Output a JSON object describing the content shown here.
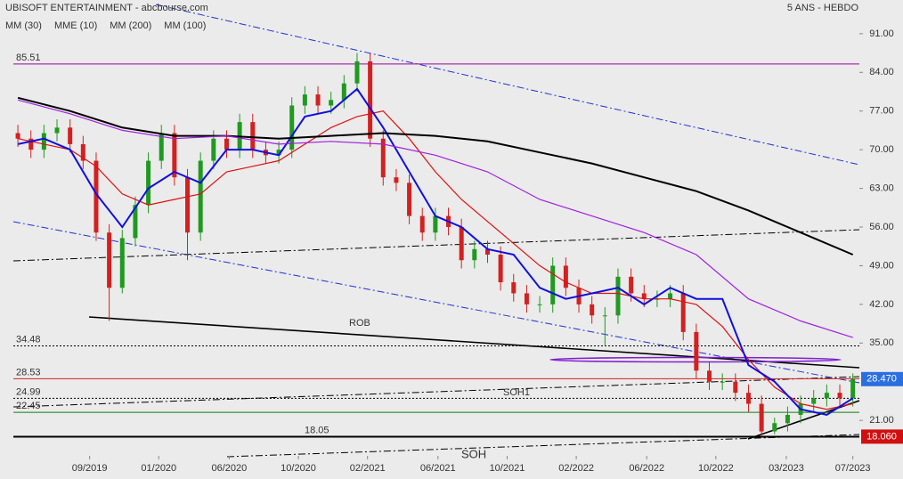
{
  "chart_data": {
    "type": "candlestick",
    "title": "UBISOFT ENTERTAINMENT - abcbourse.com",
    "subtitle": "5 ANS - HEBDO",
    "annotations": [
      "ROB",
      "SOH1",
      "SOH"
    ],
    "x": [
      0,
      1,
      2,
      3,
      4,
      5,
      6,
      7,
      8,
      9,
      10,
      11,
      12,
      13,
      14,
      15,
      16,
      17,
      18,
      19,
      20,
      21,
      22,
      23,
      24,
      25,
      26,
      27,
      28,
      29,
      30,
      31,
      32,
      33,
      34,
      35,
      36,
      37,
      38,
      39,
      40,
      41,
      42,
      43,
      44,
      45,
      46,
      47,
      48,
      49,
      50,
      51,
      52,
      53,
      54,
      55,
      56,
      57,
      58,
      59,
      60,
      61,
      62,
      63,
      64
    ],
    "open": [
      73,
      72,
      70,
      73,
      74,
      71,
      68,
      55,
      45,
      54,
      60,
      68,
      73,
      65,
      55,
      68,
      72,
      70,
      75,
      70,
      69,
      70,
      78,
      80,
      78,
      79,
      82,
      86,
      72,
      65,
      64,
      58,
      55,
      58,
      56,
      50,
      52,
      51,
      46,
      44,
      42,
      42,
      49,
      45,
      42,
      40,
      40,
      47,
      44,
      43,
      43,
      44,
      37,
      30,
      28,
      28,
      26,
      24,
      19,
      20.5,
      22,
      24,
      25,
      26,
      25
    ],
    "high": [
      74.5,
      73.5,
      74.5,
      75.5,
      75.5,
      72.5,
      69.5,
      56.5,
      55.5,
      61.5,
      69.5,
      74.5,
      74.5,
      66.5,
      69.5,
      73.5,
      73.5,
      76.5,
      76.5,
      71.5,
      71.5,
      79.5,
      81.5,
      81.5,
      80.5,
      83.5,
      87.5,
      87.5,
      73.5,
      66.5,
      65.5,
      59.5,
      59.5,
      59.5,
      57.5,
      53.5,
      53.5,
      52.5,
      47.5,
      45.5,
      43.5,
      50.5,
      50.5,
      46.5,
      43.5,
      41.5,
      48.5,
      48.5,
      45.5,
      44.5,
      45.5,
      45.5,
      38.5,
      31.5,
      29.5,
      29.5,
      27.5,
      25.5,
      21.5,
      23.5,
      25.5,
      26.5,
      27.5,
      27.5,
      29.5
    ],
    "low": [
      70.5,
      68.5,
      68.5,
      71.5,
      69.5,
      66.5,
      53.5,
      39,
      44,
      52.5,
      58.5,
      66.5,
      63.5,
      50,
      53.5,
      66.5,
      68.5,
      68.5,
      68.5,
      67.5,
      67.5,
      68.5,
      76.5,
      76.5,
      76.5,
      77.5,
      80.5,
      70.5,
      63.5,
      62.5,
      56.5,
      53.5,
      53.5,
      54.5,
      48.5,
      48.5,
      49.5,
      44.5,
      42.5,
      40.5,
      40.5,
      40.5,
      43.5,
      40.5,
      38.5,
      34.5,
      38.5,
      42.5,
      41.5,
      41.5,
      41.5,
      35.5,
      28.5,
      26.5,
      26.5,
      24.5,
      22.5,
      18.06,
      18.5,
      19,
      20.5,
      22.5,
      23.5,
      23.5,
      23.5
    ],
    "close": [
      72,
      70,
      73,
      74,
      71,
      68,
      55,
      45,
      54,
      60,
      68,
      73,
      65,
      55,
      68,
      72,
      70,
      75,
      70,
      69,
      70,
      78,
      80,
      78,
      79,
      82,
      86,
      72,
      65,
      64,
      58,
      55,
      58,
      56,
      50,
      52,
      51,
      46,
      44,
      42,
      42,
      49,
      45,
      42,
      40,
      40,
      47,
      44,
      43,
      43,
      44,
      37,
      30,
      28,
      28,
      26,
      24,
      19,
      20.5,
      22,
      24,
      25,
      26,
      25,
      28.47
    ],
    "up_color": "#1f9a1f",
    "down_color": "#d42020",
    "series": [
      {
        "name": "MM (30)",
        "color": "#e01010",
        "x": [
          0,
          2,
          4,
          6,
          8,
          10,
          12,
          14,
          16,
          18,
          20,
          22,
          24,
          26,
          28,
          30,
          32,
          34,
          36,
          38,
          40,
          42,
          44,
          46,
          48,
          50,
          52,
          54,
          56,
          58,
          60,
          62,
          64
        ],
        "values": [
          72,
          71,
          70,
          67,
          62,
          60,
          61,
          62,
          66,
          67,
          68,
          71,
          74,
          76,
          77,
          72,
          66,
          61,
          57,
          53,
          49,
          46,
          44,
          44,
          43,
          43,
          42,
          38,
          32,
          27,
          24,
          23,
          24
        ]
      },
      {
        "name": "MME (10)",
        "color": "#1010e0",
        "x": [
          0,
          2,
          4,
          6,
          8,
          10,
          12,
          14,
          16,
          18,
          20,
          22,
          24,
          26,
          28,
          30,
          32,
          34,
          36,
          38,
          40,
          42,
          44,
          46,
          48,
          50,
          52,
          54,
          56,
          58,
          60,
          62,
          64
        ],
        "values": [
          71,
          72,
          70,
          62,
          56,
          63,
          66,
          64,
          70,
          70,
          69,
          76,
          77,
          81,
          74,
          66,
          58,
          56,
          52,
          51,
          45,
          43,
          44,
          45,
          42,
          45,
          43,
          43,
          31,
          28,
          23,
          22,
          25
        ]
      },
      {
        "name": "MM (200)",
        "color": "#000000",
        "x": [
          0,
          4,
          8,
          12,
          16,
          20,
          24,
          28,
          32,
          36,
          40,
          44,
          48,
          52,
          56,
          60,
          64
        ],
        "values": [
          79.4,
          77,
          74,
          72.5,
          72.5,
          72,
          72.5,
          73,
          72.5,
          71.5,
          69.5,
          67.5,
          65,
          62.5,
          59,
          55,
          51
        ]
      },
      {
        "name": "MM (100)",
        "color": "#a020e0",
        "x": [
          0,
          4,
          8,
          12,
          16,
          20,
          24,
          28,
          32,
          36,
          40,
          44,
          48,
          52,
          56,
          60,
          64
        ],
        "values": [
          79,
          76.5,
          73.5,
          72,
          72.5,
          71,
          71.5,
          71,
          69,
          66,
          61,
          58,
          55,
          51,
          43,
          39,
          36
        ]
      }
    ],
    "levels": [
      {
        "value": 85.51,
        "color": "#a000a0"
      },
      {
        "value": 34.48,
        "color": "#000000"
      },
      {
        "value": 28.53,
        "color": "#d02020"
      },
      {
        "value": 24.99,
        "color": "#000000"
      },
      {
        "value": 22.45,
        "color": "#108010"
      },
      {
        "value": 18.05,
        "color": "#a000a0"
      }
    ],
    "price_tags": [
      {
        "value": 28.47,
        "label": "28.470",
        "color": "#2a6fe0"
      },
      {
        "value": 18.06,
        "label": "18.060",
        "color": "#d01010"
      }
    ],
    "xlim": [
      -1.37,
      64.5
    ],
    "ylim": [
      14.9,
      97.1
    ],
    "xticks": [
      {
        "value": 5.5,
        "label": "09/2019"
      },
      {
        "value": 10.8,
        "label": "01/2020"
      },
      {
        "value": 16.2,
        "label": "06/2020"
      },
      {
        "value": 21.5,
        "label": "10/2020"
      },
      {
        "value": 26.8,
        "label": "02/2021"
      },
      {
        "value": 32.2,
        "label": "06/2021"
      },
      {
        "value": 37.5,
        "label": "10/2021"
      },
      {
        "value": 42.8,
        "label": "02/2022"
      },
      {
        "value": 48.2,
        "label": "06/2022"
      },
      {
        "value": 53.5,
        "label": "10/2022"
      },
      {
        "value": 58.9,
        "label": "03/2023"
      },
      {
        "value": 64,
        "label": "07/2023"
      }
    ],
    "yticks": [
      {
        "value": 91,
        "label": "91.00"
      },
      {
        "value": 84,
        "label": "84.00"
      },
      {
        "value": 77,
        "label": "77.00"
      },
      {
        "value": 70,
        "label": "70.00"
      },
      {
        "value": 63,
        "label": "63.00"
      },
      {
        "value": 56,
        "label": "56.00"
      },
      {
        "value": 49,
        "label": "49.00"
      },
      {
        "value": 42,
        "label": "42.00"
      },
      {
        "value": 35,
        "label": "35.00"
      },
      {
        "value": 21,
        "label": "21.00"
      }
    ]
  }
}
